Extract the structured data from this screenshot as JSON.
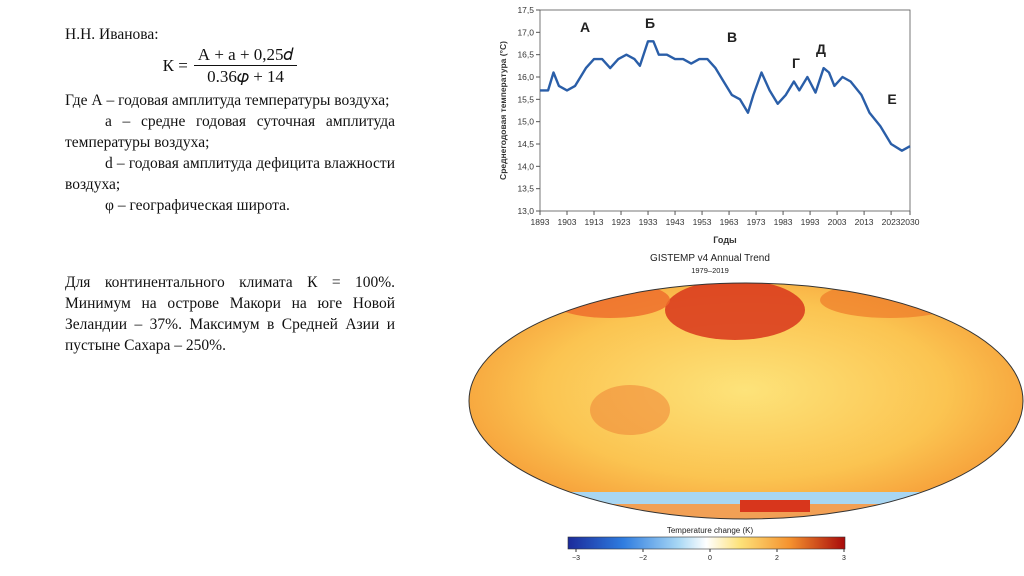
{
  "text": {
    "author": "Н.Н. Иванова:",
    "formula": {
      "lhs": "К =",
      "numerator": "А + а + 0,25𝑑",
      "denominator": "0.36𝜑 + 14"
    },
    "definitions": [
      "Где А – годовая амплитуда температуры воздуха;",
      "а – средне годовая суточная амплитуда температуры воздуха;",
      "d – годовая амплитуда дефицита влажности воздуха;",
      "φ – географическая широта."
    ],
    "conclusion": "Для континентального климата К = 100%. Минимум на островe Макори на юге Новой Зеландии – 37%. Максимум в Средней Азии и пустыне Сахара – 250%."
  },
  "chart_data": {
    "type": "line",
    "y_label": "Среднегодовая температура (°С)",
    "x_label": "Годы",
    "color": "#2a5ea8",
    "annotations": [
      "А",
      "Б",
      "В",
      "Г",
      "Д",
      "Е"
    ],
    "x": [
      1893,
      1896,
      1898,
      1900,
      1903,
      1906,
      1910,
      1913,
      1916,
      1919,
      1922,
      1925,
      1928,
      1930,
      1933,
      1935,
      1937,
      1940,
      1943,
      1946,
      1949,
      1952,
      1955,
      1958,
      1961,
      1964,
      1967,
      1970,
      1972,
      1975,
      1978,
      1981,
      1984,
      1987,
      1989,
      1992,
      1995,
      1998,
      2000,
      2002,
      2005,
      2008,
      2012,
      2015,
      2019,
      2023,
      2027,
      2030
    ],
    "values": [
      15.7,
      15.7,
      16.1,
      15.8,
      15.7,
      15.8,
      16.2,
      16.4,
      16.4,
      16.2,
      16.4,
      16.5,
      16.4,
      16.25,
      16.8,
      16.8,
      16.5,
      16.5,
      16.4,
      16.4,
      16.3,
      16.4,
      16.4,
      16.2,
      15.9,
      15.6,
      15.5,
      15.2,
      15.6,
      16.1,
      15.7,
      15.4,
      15.6,
      15.9,
      15.7,
      16.0,
      15.65,
      16.2,
      16.1,
      15.8,
      16.0,
      15.9,
      15.6,
      15.2,
      14.9,
      14.5,
      14.35,
      14.45
    ],
    "xlim": [
      1893,
      2030
    ],
    "xticks": [
      1893,
      1903,
      1913,
      1923,
      1933,
      1943,
      1953,
      1963,
      1973,
      1983,
      1993,
      2003,
      2013,
      2023,
      2030
    ],
    "ylim": [
      13,
      17.5
    ],
    "yticks": [
      {
        "value": 13,
        "label": "13,0"
      },
      {
        "value": 13.5,
        "label": "13,5"
      },
      {
        "value": 14,
        "label": "14,0"
      },
      {
        "value": 14.5,
        "label": "14,5"
      },
      {
        "value": 15,
        "label": "15,0"
      },
      {
        "value": 15.5,
        "label": "15,5"
      },
      {
        "value": 16,
        "label": "16,0"
      },
      {
        "value": 16.5,
        "label": "16,5"
      },
      {
        "value": 17,
        "label": "17,0"
      },
      {
        "value": 17.5,
        "label": "17,5"
      }
    ]
  },
  "map": {
    "title": "GISTEMP v4 Annual Trend",
    "subtitle": "1979–2019",
    "colorbar_label": "Temperature change (K)",
    "colorbar_lim": [
      -3,
      3
    ],
    "colorbar_ticks": [
      {
        "value": -3,
        "label": "−3"
      },
      {
        "value": -2,
        "label": "−2"
      },
      0,
      2,
      3
    ]
  }
}
